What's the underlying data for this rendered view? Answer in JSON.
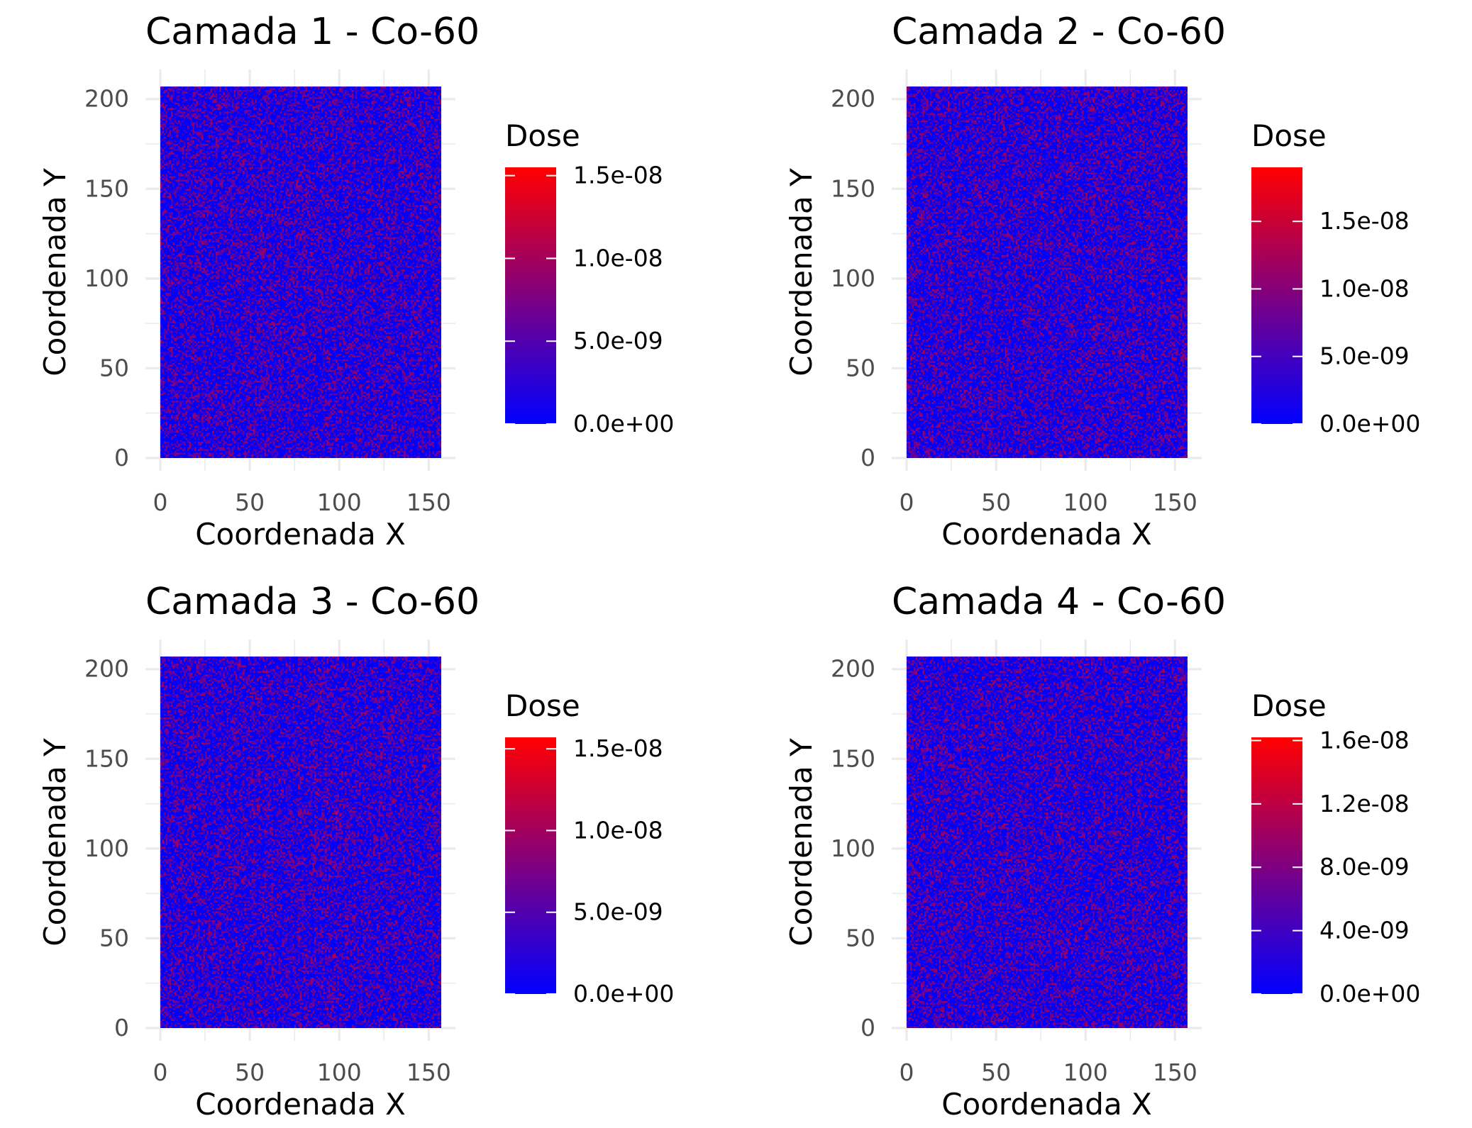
{
  "chart_data": [
    {
      "type": "heatmap",
      "title": "Camada 1 - Co-60",
      "xlabel": "Coordenada X",
      "ylabel": "Coordenada Y",
      "xlim": [
        0,
        157
      ],
      "ylim": [
        0,
        207
      ],
      "x_ticks": [
        0,
        50,
        100,
        150
      ],
      "x_tick_labels": [
        "0",
        "50",
        "100",
        "150"
      ],
      "y_ticks": [
        0,
        50,
        100,
        150,
        200
      ],
      "y_tick_labels": [
        "0",
        "50",
        "100",
        "150",
        "200"
      ],
      "grid": true,
      "legend": {
        "title": "Dose",
        "position": "right",
        "colors": [
          "#0000ff",
          "#ff0000"
        ],
        "min": 0,
        "max": 1.55e-08,
        "breaks": [
          0,
          5e-09,
          1e-08,
          1.5e-08
        ],
        "break_labels": [
          "0.0e+00",
          "5.0e-09",
          "1.0e-08",
          "1.5e-08"
        ]
      }
    },
    {
      "type": "heatmap",
      "title": "Camada 2 - Co-60",
      "xlabel": "Coordenada X",
      "ylabel": "Coordenada Y",
      "xlim": [
        0,
        157
      ],
      "ylim": [
        0,
        207
      ],
      "x_ticks": [
        0,
        50,
        100,
        150
      ],
      "x_tick_labels": [
        "0",
        "50",
        "100",
        "150"
      ],
      "y_ticks": [
        0,
        50,
        100,
        150,
        200
      ],
      "y_tick_labels": [
        "0",
        "50",
        "100",
        "150",
        "200"
      ],
      "grid": true,
      "legend": {
        "title": "Dose",
        "position": "right",
        "colors": [
          "#0000ff",
          "#ff0000"
        ],
        "min": 0,
        "max": 1.9e-08,
        "breaks": [
          0,
          5e-09,
          1e-08,
          1.5e-08
        ],
        "break_labels": [
          "0.0e+00",
          "5.0e-09",
          "1.0e-08",
          "1.5e-08"
        ]
      }
    },
    {
      "type": "heatmap",
      "title": "Camada 3 - Co-60",
      "xlabel": "Coordenada X",
      "ylabel": "Coordenada Y",
      "xlim": [
        0,
        157
      ],
      "ylim": [
        0,
        207
      ],
      "x_ticks": [
        0,
        50,
        100,
        150
      ],
      "x_tick_labels": [
        "0",
        "50",
        "100",
        "150"
      ],
      "y_ticks": [
        0,
        50,
        100,
        150,
        200
      ],
      "y_tick_labels": [
        "0",
        "50",
        "100",
        "150",
        "200"
      ],
      "grid": true,
      "legend": {
        "title": "Dose",
        "position": "right",
        "colors": [
          "#0000ff",
          "#ff0000"
        ],
        "min": 0,
        "max": 1.57e-08,
        "breaks": [
          0,
          5e-09,
          1e-08,
          1.5e-08
        ],
        "break_labels": [
          "0.0e+00",
          "5.0e-09",
          "1.0e-08",
          "1.5e-08"
        ]
      }
    },
    {
      "type": "heatmap",
      "title": "Camada 4 - Co-60",
      "xlabel": "Coordenada X",
      "ylabel": "Coordenada Y",
      "xlim": [
        0,
        157
      ],
      "ylim": [
        0,
        207
      ],
      "x_ticks": [
        0,
        50,
        100,
        150
      ],
      "x_tick_labels": [
        "0",
        "50",
        "100",
        "150"
      ],
      "y_ticks": [
        0,
        50,
        100,
        150,
        200
      ],
      "y_tick_labels": [
        "0",
        "50",
        "100",
        "150",
        "200"
      ],
      "grid": true,
      "legend": {
        "title": "Dose",
        "position": "right",
        "colors": [
          "#0000ff",
          "#ff0000"
        ],
        "min": 0,
        "max": 1.62e-08,
        "breaks": [
          0,
          4e-09,
          8e-09,
          1.2e-08,
          1.6e-08
        ],
        "break_labels": [
          "0.0e+00",
          "4.0e-09",
          "8.0e-09",
          "1.2e-08",
          "1.6e-08"
        ]
      }
    }
  ]
}
